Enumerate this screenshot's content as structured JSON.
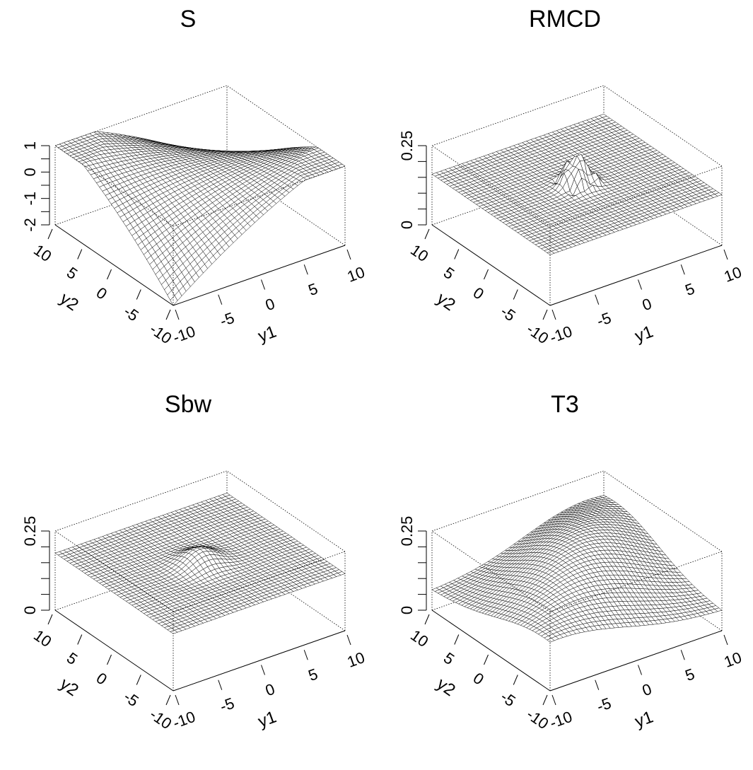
{
  "chart_data": [
    {
      "type": "surface",
      "title": "S",
      "xlabel": "y1",
      "ylabel": "y2",
      "x_ticks": [
        "-10",
        "-5",
        "0",
        "5",
        "10"
      ],
      "y_ticks": [
        "-10",
        "-5",
        "0",
        "5",
        "10"
      ],
      "z_ticks": [
        "-2",
        "-1",
        "0",
        "1"
      ],
      "xlim": [
        -10,
        10
      ],
      "ylim": [
        -10,
        10
      ],
      "zlim": [
        -2,
        1
      ],
      "z_tick_values": [
        -2,
        -1.5,
        -1,
        -0.5,
        0,
        0.5,
        1
      ],
      "z_labeled": [
        -2,
        -1,
        0,
        1
      ],
      "surface": "saddle",
      "grid_n": 40
    },
    {
      "type": "surface",
      "title": "RMCD",
      "xlabel": "y1",
      "ylabel": "y2",
      "x_ticks": [
        "-10",
        "-5",
        "0",
        "5",
        "10"
      ],
      "y_ticks": [
        "-10",
        "-5",
        "0",
        "5",
        "10"
      ],
      "z_ticks": [
        "0",
        "0.25"
      ],
      "xlim": [
        -10,
        10
      ],
      "ylim": [
        -10,
        10
      ],
      "zlim": [
        0,
        0.25
      ],
      "z_tick_values": [
        0,
        0.05,
        0.1,
        0.15,
        0.2,
        0.25
      ],
      "z_labeled": [
        0,
        0.25
      ],
      "surface": "sharp-peak",
      "base_level": 0.16,
      "peak_level": 0.24,
      "grid_n": 40
    },
    {
      "type": "surface",
      "title": "Sbw",
      "xlabel": "y1",
      "ylabel": "y2",
      "x_ticks": [
        "-10",
        "-5",
        "0",
        "5",
        "10"
      ],
      "y_ticks": [
        "-10",
        "-5",
        "0",
        "5",
        "10"
      ],
      "z_ticks": [
        "0",
        "0.25"
      ],
      "xlim": [
        -10,
        10
      ],
      "ylim": [
        -10,
        10
      ],
      "zlim": [
        0,
        0.25
      ],
      "z_tick_values": [
        0,
        0.05,
        0.1,
        0.15,
        0.2,
        0.25
      ],
      "z_labeled": [
        0,
        0.25
      ],
      "surface": "mexican-hat",
      "base_level": 0.18,
      "peak_level": 0.22,
      "grid_n": 40
    },
    {
      "type": "surface",
      "title": "T3",
      "xlabel": "y1",
      "ylabel": "y2",
      "x_ticks": [
        "-10",
        "-5",
        "0",
        "5",
        "10"
      ],
      "y_ticks": [
        "-10",
        "-5",
        "0",
        "5",
        "10"
      ],
      "z_ticks": [
        "0",
        "0.25"
      ],
      "xlim": [
        -10,
        10
      ],
      "ylim": [
        -10,
        10
      ],
      "zlim": [
        0,
        0.25
      ],
      "z_tick_values": [
        0,
        0.05,
        0.1,
        0.15,
        0.2,
        0.25
      ],
      "z_labeled": [
        0,
        0.25
      ],
      "surface": "ridge",
      "grid_n": 40
    }
  ]
}
